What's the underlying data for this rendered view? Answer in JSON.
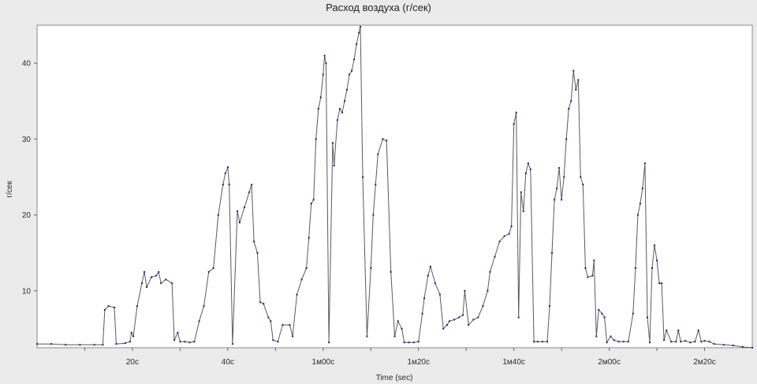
{
  "chart_data": {
    "type": "line",
    "title": "Расход воздуха (г/сек)",
    "xlabel": "Time (sec)",
    "ylabel": "г/сек",
    "xlim": [
      0,
      150
    ],
    "ylim": [
      2.5,
      45
    ],
    "x_ticks": [
      {
        "value": 20,
        "label": "20c"
      },
      {
        "value": 40,
        "label": "40c"
      },
      {
        "value": 60,
        "label": "1м00c"
      },
      {
        "value": 80,
        "label": "1м20c"
      },
      {
        "value": 100,
        "label": "1м40c"
      },
      {
        "value": 120,
        "label": "2м00c"
      },
      {
        "value": 140,
        "label": "2м20c"
      }
    ],
    "y_ticks": [
      {
        "value": 10,
        "label": "10"
      },
      {
        "value": 20,
        "label": "20"
      },
      {
        "value": 30,
        "label": "30"
      },
      {
        "value": 40,
        "label": "40"
      }
    ],
    "grid": false,
    "colors": {
      "line": "#5a5a5a",
      "marker": "#1a1aa0",
      "background": "#ffffff"
    },
    "series": [
      {
        "points": [
          [
            0,
            3.0
          ],
          [
            3,
            3.0
          ],
          [
            6,
            2.9
          ],
          [
            9,
            2.9
          ],
          [
            12,
            2.9
          ],
          [
            13.8,
            2.9
          ],
          [
            14.2,
            7.5
          ],
          [
            15,
            8.0
          ],
          [
            16.2,
            7.8
          ],
          [
            16.6,
            3.0
          ],
          [
            18.5,
            3.1
          ],
          [
            19.5,
            3.3
          ],
          [
            19.8,
            4.5
          ],
          [
            20.2,
            4.0
          ],
          [
            21,
            8.0
          ],
          [
            22,
            11.0
          ],
          [
            22.5,
            12.5
          ],
          [
            23,
            10.5
          ],
          [
            24,
            11.8
          ],
          [
            25,
            12.0
          ],
          [
            25.5,
            12.5
          ],
          [
            26,
            11.0
          ],
          [
            27,
            11.5
          ],
          [
            28.3,
            11.0
          ],
          [
            28.8,
            3.5
          ],
          [
            29.5,
            4.5
          ],
          [
            30,
            3.3
          ],
          [
            31,
            3.3
          ],
          [
            32,
            3.2
          ],
          [
            33,
            3.3
          ],
          [
            34,
            6.0
          ],
          [
            35,
            8.0
          ],
          [
            36,
            12.5
          ],
          [
            37,
            13.0
          ],
          [
            38,
            20.0
          ],
          [
            39,
            24.0
          ],
          [
            39.5,
            25.5
          ],
          [
            40,
            26.3
          ],
          [
            40.3,
            24.0
          ],
          [
            41,
            3.0
          ],
          [
            42,
            20.5
          ],
          [
            42.5,
            19.0
          ],
          [
            43.5,
            21.0
          ],
          [
            44.5,
            23.0
          ],
          [
            45,
            24.0
          ],
          [
            45.5,
            16.5
          ],
          [
            46.2,
            15.0
          ],
          [
            46.8,
            8.5
          ],
          [
            47.5,
            8.3
          ],
          [
            48.5,
            6.5
          ],
          [
            49,
            6.0
          ],
          [
            49.5,
            3.5
          ],
          [
            50.5,
            3.3
          ],
          [
            51.5,
            5.5
          ],
          [
            53,
            5.5
          ],
          [
            53.6,
            4.0
          ],
          [
            54.5,
            9.5
          ],
          [
            55.5,
            11.5
          ],
          [
            56.5,
            13.0
          ],
          [
            57,
            17.0
          ],
          [
            57.5,
            21.5
          ],
          [
            58,
            22.0
          ],
          [
            58.5,
            30.0
          ],
          [
            59,
            34.0
          ],
          [
            59.5,
            35.5
          ],
          [
            60,
            38.5
          ],
          [
            60.3,
            41.0
          ],
          [
            60.6,
            40.0
          ],
          [
            61.2,
            3.2
          ],
          [
            62,
            29.5
          ],
          [
            62.3,
            26.5
          ],
          [
            63,
            32.5
          ],
          [
            63.5,
            34.0
          ],
          [
            64,
            33.5
          ],
          [
            64.5,
            35.0
          ],
          [
            65,
            36.5
          ],
          [
            65.5,
            38.5
          ],
          [
            66,
            39.0
          ],
          [
            66.5,
            40.5
          ],
          [
            67,
            42.5
          ],
          [
            67.5,
            44.0
          ],
          [
            67.8,
            44.8
          ],
          [
            68.3,
            25.0
          ],
          [
            69.2,
            4.0
          ],
          [
            70,
            13.0
          ],
          [
            70.5,
            20.0
          ],
          [
            71,
            24.0
          ],
          [
            71.5,
            28.0
          ],
          [
            72.5,
            30.0
          ],
          [
            73.3,
            29.8
          ],
          [
            74.2,
            12.5
          ],
          [
            75,
            4.0
          ],
          [
            75.7,
            6.0
          ],
          [
            76.5,
            5.0
          ],
          [
            77,
            3.2
          ],
          [
            78,
            3.2
          ],
          [
            79,
            3.2
          ],
          [
            80,
            3.3
          ],
          [
            80.8,
            7.0
          ],
          [
            81.2,
            9.0
          ],
          [
            82,
            12.0
          ],
          [
            82.5,
            13.2
          ],
          [
            83.5,
            11.0
          ],
          [
            84.5,
            9.5
          ],
          [
            85.2,
            5.0
          ],
          [
            86,
            5.5
          ],
          [
            86.5,
            6.0
          ],
          [
            87.5,
            6.2
          ],
          [
            88.5,
            6.5
          ],
          [
            89.3,
            6.8
          ],
          [
            89.7,
            10.0
          ],
          [
            90.5,
            5.5
          ],
          [
            91.5,
            6.2
          ],
          [
            92.5,
            6.5
          ],
          [
            93.5,
            8.0
          ],
          [
            94.5,
            10.0
          ],
          [
            95,
            12.5
          ],
          [
            96,
            14.5
          ],
          [
            97,
            16.5
          ],
          [
            98,
            17.2
          ],
          [
            99,
            17.5
          ],
          [
            99.5,
            18.5
          ],
          [
            100,
            32.0
          ],
          [
            100.5,
            33.5
          ],
          [
            101,
            6.5
          ],
          [
            101.5,
            23.0
          ],
          [
            102,
            20.5
          ],
          [
            102.5,
            25.5
          ],
          [
            103,
            26.8
          ],
          [
            103.5,
            26.0
          ],
          [
            104.2,
            3.3
          ],
          [
            105,
            3.3
          ],
          [
            106,
            3.3
          ],
          [
            107,
            3.3
          ],
          [
            107.5,
            8.0
          ],
          [
            108,
            15.0
          ],
          [
            108.5,
            22.0
          ],
          [
            109,
            23.5
          ],
          [
            109.5,
            26.2
          ],
          [
            110,
            22.0
          ],
          [
            110.5,
            25.0
          ],
          [
            111,
            30.0
          ],
          [
            111.5,
            34.0
          ],
          [
            112,
            35.0
          ],
          [
            112.5,
            39.0
          ],
          [
            113,
            36.5
          ],
          [
            113.5,
            37.8
          ],
          [
            114,
            25.0
          ],
          [
            114.5,
            24.0
          ],
          [
            115,
            13.0
          ],
          [
            115.5,
            11.8
          ],
          [
            116.5,
            12.0
          ],
          [
            116.8,
            14.0
          ],
          [
            117.3,
            4.0
          ],
          [
            117.8,
            7.5
          ],
          [
            118.5,
            7.0
          ],
          [
            119,
            6.5
          ],
          [
            119.5,
            3.2
          ],
          [
            120.3,
            4.0
          ],
          [
            121,
            3.5
          ],
          [
            122,
            3.3
          ],
          [
            123,
            3.3
          ],
          [
            124,
            3.3
          ],
          [
            125,
            7.0
          ],
          [
            125.5,
            13.0
          ],
          [
            126,
            20.0
          ],
          [
            126.5,
            21.5
          ],
          [
            127,
            23.5
          ],
          [
            127.5,
            26.8
          ],
          [
            128,
            6.5
          ],
          [
            128.5,
            3.2
          ],
          [
            129,
            13.0
          ],
          [
            129.5,
            16.0
          ],
          [
            130,
            14.0
          ],
          [
            130.5,
            11.0
          ],
          [
            131,
            11.0
          ],
          [
            131.5,
            3.5
          ],
          [
            132,
            4.8
          ],
          [
            133,
            3.3
          ],
          [
            134,
            3.3
          ],
          [
            134.5,
            4.8
          ],
          [
            135,
            3.3
          ],
          [
            136,
            3.4
          ],
          [
            137,
            3.2
          ],
          [
            138,
            3.3
          ],
          [
            138.7,
            4.8
          ],
          [
            139.3,
            3.3
          ],
          [
            140,
            3.4
          ],
          [
            141,
            3.3
          ],
          [
            142,
            3.0
          ],
          [
            144,
            2.9
          ],
          [
            146,
            2.8
          ],
          [
            148,
            2.6
          ],
          [
            150,
            2.5
          ]
        ]
      }
    ]
  }
}
